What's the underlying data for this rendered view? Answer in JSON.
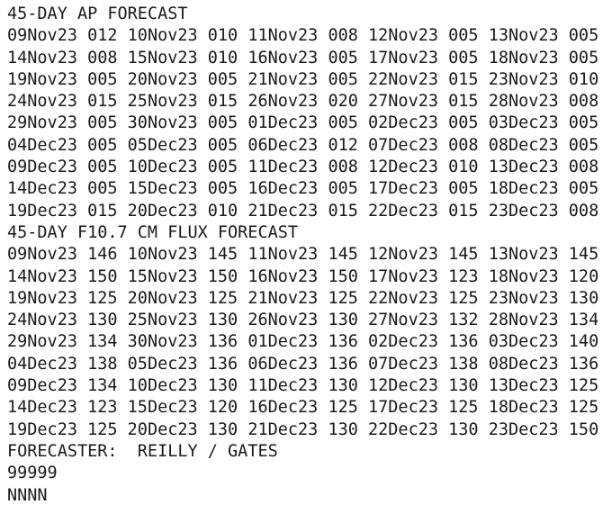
{
  "ap_forecast": {
    "title": "45-DAY AP FORECAST",
    "rows": [
      [
        [
          "09Nov23",
          "012"
        ],
        [
          "10Nov23",
          "010"
        ],
        [
          "11Nov23",
          "008"
        ],
        [
          "12Nov23",
          "005"
        ],
        [
          "13Nov23",
          "005"
        ]
      ],
      [
        [
          "14Nov23",
          "008"
        ],
        [
          "15Nov23",
          "010"
        ],
        [
          "16Nov23",
          "005"
        ],
        [
          "17Nov23",
          "005"
        ],
        [
          "18Nov23",
          "005"
        ]
      ],
      [
        [
          "19Nov23",
          "005"
        ],
        [
          "20Nov23",
          "005"
        ],
        [
          "21Nov23",
          "005"
        ],
        [
          "22Nov23",
          "015"
        ],
        [
          "23Nov23",
          "010"
        ]
      ],
      [
        [
          "24Nov23",
          "015"
        ],
        [
          "25Nov23",
          "015"
        ],
        [
          "26Nov23",
          "020"
        ],
        [
          "27Nov23",
          "015"
        ],
        [
          "28Nov23",
          "008"
        ]
      ],
      [
        [
          "29Nov23",
          "005"
        ],
        [
          "30Nov23",
          "005"
        ],
        [
          "01Dec23",
          "005"
        ],
        [
          "02Dec23",
          "005"
        ],
        [
          "03Dec23",
          "005"
        ]
      ],
      [
        [
          "04Dec23",
          "005"
        ],
        [
          "05Dec23",
          "005"
        ],
        [
          "06Dec23",
          "012"
        ],
        [
          "07Dec23",
          "008"
        ],
        [
          "08Dec23",
          "005"
        ]
      ],
      [
        [
          "09Dec23",
          "005"
        ],
        [
          "10Dec23",
          "005"
        ],
        [
          "11Dec23",
          "008"
        ],
        [
          "12Dec23",
          "010"
        ],
        [
          "13Dec23",
          "008"
        ]
      ],
      [
        [
          "14Dec23",
          "005"
        ],
        [
          "15Dec23",
          "005"
        ],
        [
          "16Dec23",
          "005"
        ],
        [
          "17Dec23",
          "005"
        ],
        [
          "18Dec23",
          "005"
        ]
      ],
      [
        [
          "19Dec23",
          "015"
        ],
        [
          "20Dec23",
          "010"
        ],
        [
          "21Dec23",
          "015"
        ],
        [
          "22Dec23",
          "015"
        ],
        [
          "23Dec23",
          "008"
        ]
      ]
    ]
  },
  "flux_forecast": {
    "title": "45-DAY F10.7 CM FLUX FORECAST",
    "rows": [
      [
        [
          "09Nov23",
          "146"
        ],
        [
          "10Nov23",
          "145"
        ],
        [
          "11Nov23",
          "145"
        ],
        [
          "12Nov23",
          "145"
        ],
        [
          "13Nov23",
          "145"
        ]
      ],
      [
        [
          "14Nov23",
          "150"
        ],
        [
          "15Nov23",
          "150"
        ],
        [
          "16Nov23",
          "150"
        ],
        [
          "17Nov23",
          "123"
        ],
        [
          "18Nov23",
          "120"
        ]
      ],
      [
        [
          "19Nov23",
          "125"
        ],
        [
          "20Nov23",
          "125"
        ],
        [
          "21Nov23",
          "125"
        ],
        [
          "22Nov23",
          "125"
        ],
        [
          "23Nov23",
          "130"
        ]
      ],
      [
        [
          "24Nov23",
          "130"
        ],
        [
          "25Nov23",
          "130"
        ],
        [
          "26Nov23",
          "130"
        ],
        [
          "27Nov23",
          "132"
        ],
        [
          "28Nov23",
          "134"
        ]
      ],
      [
        [
          "29Nov23",
          "134"
        ],
        [
          "30Nov23",
          "136"
        ],
        [
          "01Dec23",
          "136"
        ],
        [
          "02Dec23",
          "136"
        ],
        [
          "03Dec23",
          "140"
        ]
      ],
      [
        [
          "04Dec23",
          "138"
        ],
        [
          "05Dec23",
          "136"
        ],
        [
          "06Dec23",
          "136"
        ],
        [
          "07Dec23",
          "138"
        ],
        [
          "08Dec23",
          "136"
        ]
      ],
      [
        [
          "09Dec23",
          "134"
        ],
        [
          "10Dec23",
          "130"
        ],
        [
          "11Dec23",
          "130"
        ],
        [
          "12Dec23",
          "130"
        ],
        [
          "13Dec23",
          "125"
        ]
      ],
      [
        [
          "14Dec23",
          "123"
        ],
        [
          "15Dec23",
          "120"
        ],
        [
          "16Dec23",
          "125"
        ],
        [
          "17Dec23",
          "125"
        ],
        [
          "18Dec23",
          "125"
        ]
      ],
      [
        [
          "19Dec23",
          "125"
        ],
        [
          "20Dec23",
          "130"
        ],
        [
          "21Dec23",
          "130"
        ],
        [
          "22Dec23",
          "130"
        ],
        [
          "23Dec23",
          "150"
        ]
      ]
    ]
  },
  "footer": {
    "forecaster": "FORECASTER:  REILLY / GATES",
    "code": "99999",
    "end": "NNNN"
  }
}
